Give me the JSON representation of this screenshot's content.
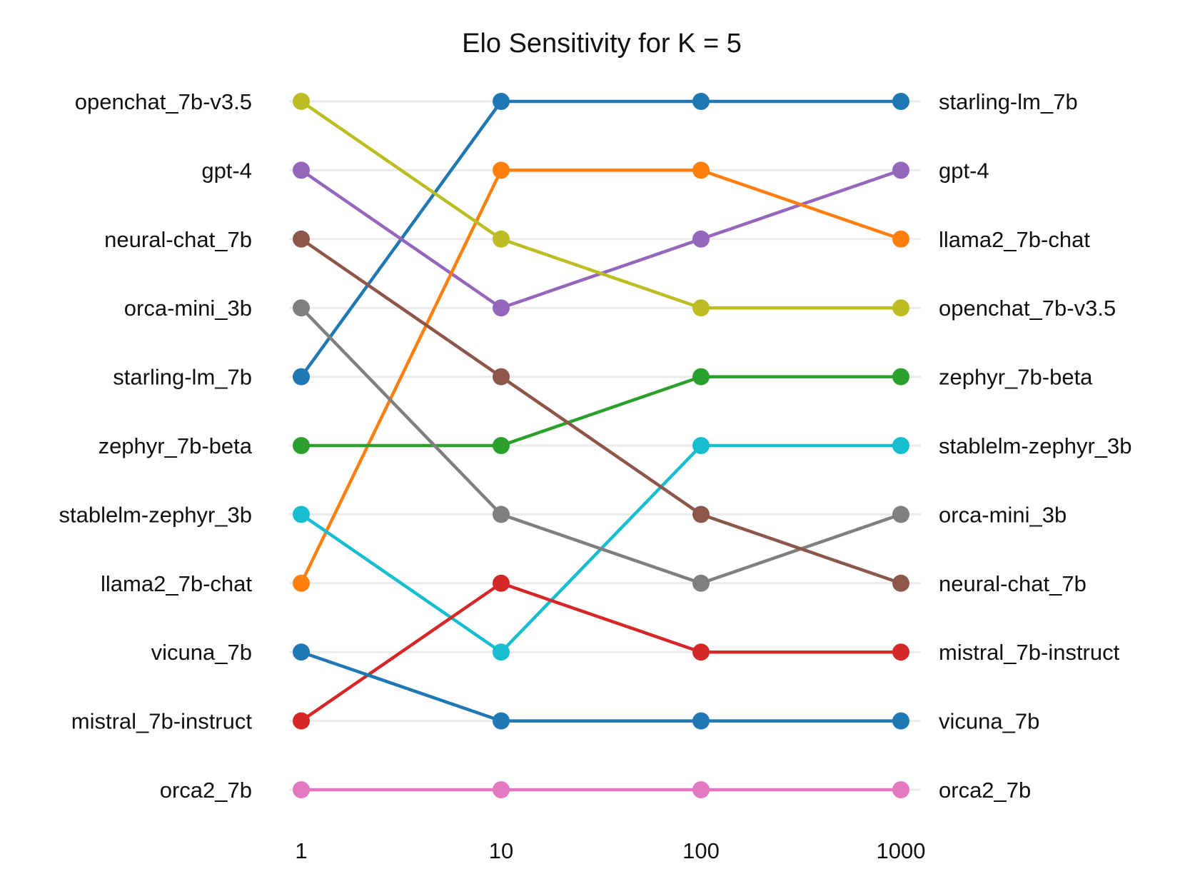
{
  "chart_data": {
    "type": "line",
    "subtype": "bump",
    "title": "Elo Sensitivity for K = 5",
    "xlabel": "",
    "ylabel": "",
    "grid": true,
    "legend": "none",
    "x": [
      "1",
      "10",
      "100",
      "1000"
    ],
    "ranks_range": [
      1,
      11
    ],
    "left_labels": [
      "openchat_7b-v3.5",
      "gpt-4",
      "neural-chat_7b",
      "orca-mini_3b",
      "starling-lm_7b",
      "zephyr_7b-beta",
      "stablelm-zephyr_3b",
      "llama2_7b-chat",
      "vicuna_7b",
      "mistral_7b-instruct",
      "orca2_7b"
    ],
    "right_labels": [
      "starling-lm_7b",
      "gpt-4",
      "llama2_7b-chat",
      "openchat_7b-v3.5",
      "zephyr_7b-beta",
      "stablelm-zephyr_3b",
      "orca-mini_3b",
      "neural-chat_7b",
      "mistral_7b-instruct",
      "vicuna_7b",
      "orca2_7b"
    ],
    "series": [
      {
        "name": "starling-lm_7b",
        "color": "#1f77b4",
        "ranks": [
          5,
          1,
          1,
          1
        ]
      },
      {
        "name": "gpt-4",
        "color": "#9467bd",
        "ranks": [
          2,
          4,
          3,
          2
        ]
      },
      {
        "name": "llama2_7b-chat",
        "color": "#ff7f0e",
        "ranks": [
          8,
          2,
          2,
          3
        ]
      },
      {
        "name": "openchat_7b-v3.5",
        "color": "#bcbd22",
        "ranks": [
          1,
          3,
          4,
          4
        ]
      },
      {
        "name": "zephyr_7b-beta",
        "color": "#2ca02c",
        "ranks": [
          6,
          6,
          5,
          5
        ]
      },
      {
        "name": "stablelm-zephyr_3b",
        "color": "#17becf",
        "ranks": [
          7,
          9,
          6,
          6
        ]
      },
      {
        "name": "orca-mini_3b",
        "color": "#7f7f7f",
        "ranks": [
          4,
          7,
          8,
          7
        ]
      },
      {
        "name": "neural-chat_7b",
        "color": "#8c564b",
        "ranks": [
          3,
          5,
          7,
          8
        ]
      },
      {
        "name": "mistral_7b-instruct",
        "color": "#d62728",
        "ranks": [
          10,
          8,
          9,
          9
        ]
      },
      {
        "name": "vicuna_7b",
        "color": "#1f77b4",
        "ranks": [
          9,
          10,
          10,
          10
        ]
      },
      {
        "name": "orca2_7b",
        "color": "#e377c2",
        "ranks": [
          11,
          11,
          11,
          11
        ]
      }
    ]
  }
}
